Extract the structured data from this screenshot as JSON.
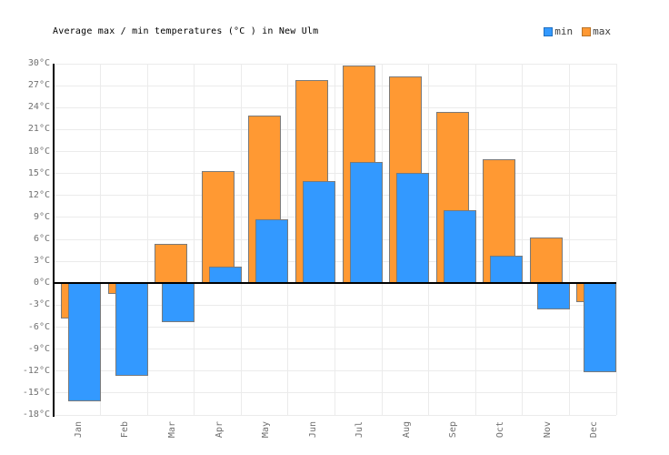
{
  "header": {
    "title": "Average max / min temperatures (°C ) in New Ulm",
    "legend": [
      {
        "label": "min",
        "color": "#3399FF",
        "border": "#1f6fc0"
      },
      {
        "label": "max",
        "color": "#FF9933",
        "border": "#b8742a"
      }
    ]
  },
  "chart_data": {
    "type": "bar",
    "style": "overlapping-bars",
    "title": "Average max / min temperatures (°C ) in New Ulm",
    "categories": [
      "Jan",
      "Feb",
      "Mar",
      "Apr",
      "May",
      "Jun",
      "Jul",
      "Aug",
      "Sep",
      "Oct",
      "Nov",
      "Dec"
    ],
    "series": [
      {
        "name": "max",
        "color": "#FF9933",
        "values": [
          -4.8,
          -1.5,
          5.4,
          15.3,
          22.9,
          27.7,
          29.8,
          28.2,
          23.4,
          16.9,
          6.2,
          -2.6
        ]
      },
      {
        "name": "min",
        "color": "#3399FF",
        "values": [
          -16.1,
          -12.7,
          -5.3,
          2.3,
          8.7,
          14.0,
          16.6,
          15.1,
          10.0,
          3.8,
          -3.6,
          -12.1
        ]
      }
    ],
    "ylim": [
      -18,
      30
    ],
    "ytick_step": 3,
    "ytick_suffix": "°C",
    "ytick_labels": [
      "30°C",
      "27°C",
      "24°C",
      "21°C",
      "18°C",
      "15°C",
      "12°C",
      "9°C",
      "6°C",
      "3°C",
      "0°C",
      "-3°C",
      "-6°C",
      "-9°C",
      "-12°C",
      "-15°C",
      "-18°C"
    ],
    "xtick_rotation": 90,
    "grid": true,
    "legend_position": "top-right",
    "bar_border_color": "#7a7a7a",
    "gridline_color": "#ebebeb",
    "zero_line_color": "#000000",
    "axis_line_color": "#000000",
    "tick_label_color": "#707070",
    "title_color": "#000000",
    "background_color": "#ffffff"
  }
}
